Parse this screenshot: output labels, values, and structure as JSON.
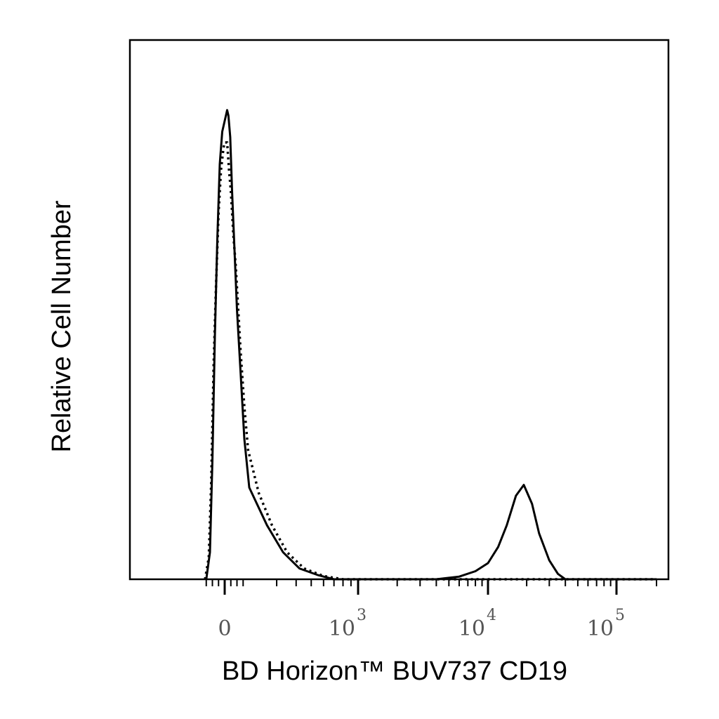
{
  "chart_data": {
    "type": "line",
    "title": "",
    "xlabel": "BD Horizon™ BUV737 CD19",
    "ylabel": "Relative Cell Number",
    "x_scale": "biexponential",
    "xlim": [
      -200,
      200000
    ],
    "ylim": [
      0,
      1.0
    ],
    "y_ticks_shown": false,
    "grid": false,
    "legend": "none",
    "x_ticks": [
      {
        "value": 0,
        "base": "0",
        "exp": ""
      },
      {
        "value": 1000,
        "base": "10",
        "exp": "3"
      },
      {
        "value": 10000,
        "base": "10",
        "exp": "4"
      },
      {
        "value": 100000,
        "base": "10",
        "exp": "5"
      }
    ],
    "series": [
      {
        "style": "solid",
        "color": "#000000",
        "x": [
          -150,
          -120,
          -100,
          -80,
          -60,
          -40,
          -20,
          0,
          10,
          20,
          30,
          45,
          60,
          80,
          100,
          130,
          160,
          200,
          260,
          330,
          420,
          550,
          700,
          1000,
          2000,
          4000,
          6000,
          8000,
          10000,
          12000,
          14000,
          16500,
          19000,
          22000,
          25000,
          30000,
          35000,
          40000,
          60000,
          100000,
          200000
        ],
        "y": [
          0.0,
          0.05,
          0.22,
          0.45,
          0.63,
          0.77,
          0.83,
          0.85,
          0.86,
          0.87,
          0.86,
          0.82,
          0.72,
          0.61,
          0.5,
          0.38,
          0.26,
          0.17,
          0.1,
          0.05,
          0.02,
          0.008,
          0.0,
          0.0,
          0.0,
          0.0,
          0.005,
          0.015,
          0.03,
          0.06,
          0.1,
          0.155,
          0.175,
          0.14,
          0.085,
          0.035,
          0.01,
          0.0,
          0.0,
          0.0,
          0.0
        ]
      },
      {
        "style": "dotted",
        "color": "#000000",
        "x": [
          -160,
          -130,
          -110,
          -90,
          -70,
          -50,
          -30,
          -10,
          0,
          10,
          20,
          35,
          50,
          70,
          90,
          110,
          130,
          160,
          190,
          230,
          280,
          350,
          450,
          600,
          800,
          1000,
          3000,
          10000,
          100000,
          200000
        ],
        "y": [
          0.0,
          0.04,
          0.18,
          0.4,
          0.55,
          0.68,
          0.76,
          0.8,
          0.81,
          0.81,
          0.81,
          0.76,
          0.72,
          0.64,
          0.58,
          0.5,
          0.42,
          0.32,
          0.24,
          0.16,
          0.1,
          0.05,
          0.02,
          0.006,
          0.0,
          0.0,
          0.0,
          0.0,
          0.0,
          0.0
        ]
      }
    ]
  }
}
